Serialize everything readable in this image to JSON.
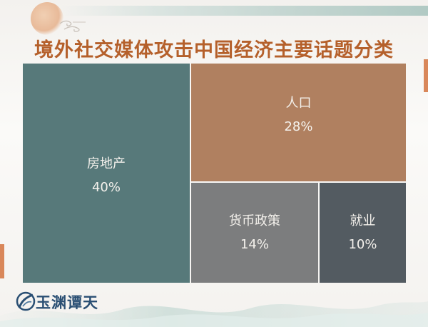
{
  "title": "境外社交媒体攻击中国经济主要话题分类",
  "brand": {
    "name": "玉渊谭天"
  },
  "colors": {
    "title": "#b5602b",
    "real_estate": "#57797a",
    "population": "#b08060",
    "monetary_policy": "#7c7d7e",
    "employment": "#535b61",
    "accent": "#d9875a",
    "brand": "#2a4f73"
  },
  "chart_data": {
    "type": "treemap",
    "title": "境外社交媒体攻击中国经济主要话题分类",
    "categories": [
      "房地产",
      "人口",
      "货币政策",
      "就业"
    ],
    "values": [
      40,
      28,
      14,
      10
    ],
    "labels": [
      "40%",
      "28%",
      "14%",
      "10%"
    ],
    "unit": "%"
  }
}
